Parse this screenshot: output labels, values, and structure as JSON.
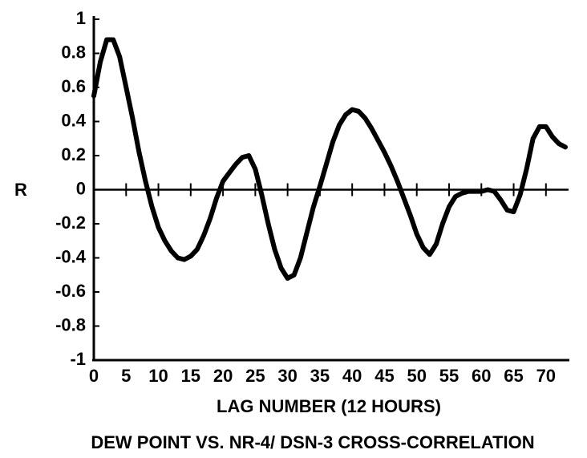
{
  "chart_data": {
    "type": "line",
    "title": "DEW POINT VS. NR-4/ DSN-3 CROSS-CORRELATION",
    "xlabel": "LAG NUMBER (12 HOURS)",
    "ylabel": "R",
    "x": [
      0,
      1,
      2,
      3,
      4,
      5,
      6,
      7,
      8,
      9,
      10,
      11,
      12,
      13,
      14,
      15,
      16,
      17,
      18,
      19,
      20,
      21,
      22,
      23,
      24,
      25,
      26,
      27,
      28,
      29,
      30,
      31,
      32,
      33,
      34,
      35,
      36,
      37,
      38,
      39,
      40,
      41,
      42,
      43,
      44,
      45,
      46,
      47,
      48,
      49,
      50,
      51,
      52,
      53,
      54,
      55,
      56,
      57,
      58,
      59,
      60,
      61,
      62,
      63,
      64,
      65,
      66,
      67,
      68,
      69,
      70,
      71,
      72,
      73
    ],
    "values": [
      0.55,
      0.75,
      0.88,
      0.88,
      0.78,
      0.6,
      0.42,
      0.22,
      0.05,
      -0.1,
      -0.22,
      -0.3,
      -0.36,
      -0.4,
      -0.41,
      -0.39,
      -0.35,
      -0.27,
      -0.17,
      -0.05,
      0.05,
      0.1,
      0.15,
      0.19,
      0.2,
      0.12,
      -0.03,
      -0.2,
      -0.35,
      -0.46,
      -0.52,
      -0.5,
      -0.4,
      -0.25,
      -0.1,
      0.02,
      0.15,
      0.28,
      0.38,
      0.44,
      0.47,
      0.46,
      0.42,
      0.36,
      0.29,
      0.22,
      0.14,
      0.05,
      -0.05,
      -0.15,
      -0.26,
      -0.34,
      -0.38,
      -0.32,
      -0.2,
      -0.1,
      -0.04,
      -0.02,
      -0.01,
      -0.01,
      -0.01,
      0,
      -0.01,
      -0.06,
      -0.12,
      -0.13,
      -0.03,
      0.12,
      0.3,
      0.37,
      0.37,
      0.31,
      0.27,
      0.25
    ],
    "color": "#000000",
    "xlim": [
      0,
      73.5
    ],
    "xticks": [
      0,
      5,
      10,
      15,
      20,
      25,
      30,
      35,
      40,
      45,
      50,
      55,
      60,
      65,
      70
    ],
    "ylim": [
      -1,
      1
    ],
    "yticks": [
      -1,
      -0.8,
      -0.6,
      -0.4,
      -0.2,
      0,
      0.2,
      0.4,
      0.6,
      0.8,
      1
    ]
  }
}
